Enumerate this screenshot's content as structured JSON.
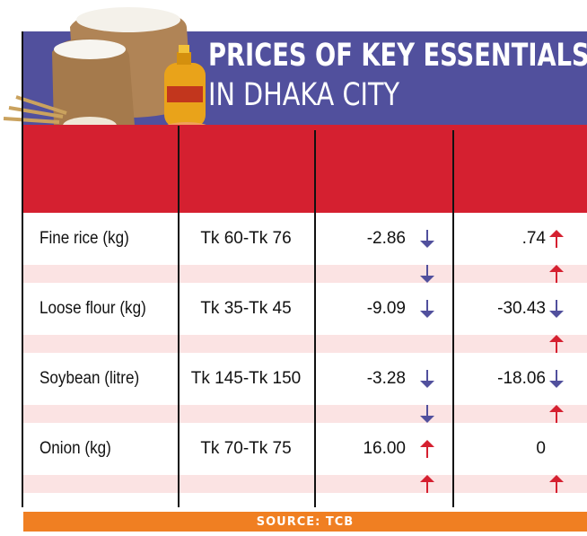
{
  "title_line1": "PRICES OF KEY ESSENTIALS",
  "title_line2": "IN DHAKA CITY",
  "source": "SOURCE: TCB",
  "colors": {
    "title_band": "#51509d",
    "header_band": "#d52030",
    "stripe": "#fbe3e3",
    "source_band": "#f07f22",
    "arrow_down": "#51509d",
    "arrow_up": "#d52030"
  },
  "chart_data": {
    "type": "table",
    "title": "PRICES OF KEY ESSENTIALS IN DHAKA CITY",
    "rows": [
      {
        "name": "Fine rice (kg)",
        "price": "Tk 60-Tk 76",
        "change1": "-2.86",
        "change2": ".74",
        "main_arrows": [
          "down",
          "up"
        ],
        "stripe_arrows": [
          "down",
          "up"
        ]
      },
      {
        "name": "Loose flour (kg)",
        "price": "Tk 35-Tk 45",
        "change1": "-9.09",
        "change2": "-30.43",
        "main_arrows": [
          "down",
          "down"
        ],
        "stripe_arrows": [
          "",
          "up"
        ]
      },
      {
        "name": "Soybean (litre)",
        "price": "Tk 145-Tk 150",
        "change1": "-3.28",
        "change2": "-18.06",
        "main_arrows": [
          "down",
          "down"
        ],
        "stripe_arrows": [
          "down",
          "up"
        ]
      },
      {
        "name": "Onion (kg)",
        "price": "Tk 70-Tk 75",
        "change1": "16.00",
        "change2": "0",
        "main_arrows": [
          "up",
          ""
        ],
        "stripe_arrows": [
          "up",
          "up"
        ]
      }
    ]
  }
}
